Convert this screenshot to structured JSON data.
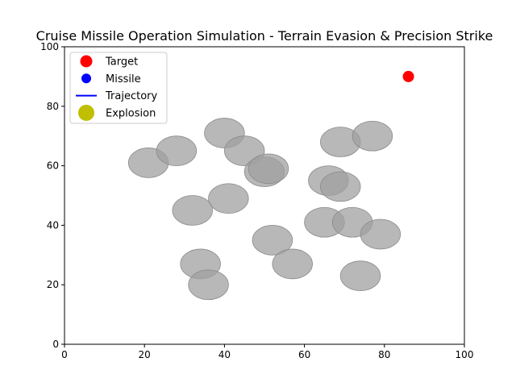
{
  "chart_data": {
    "type": "scatter",
    "title": "Cruise Missile Operation Simulation - Terrain Evasion & Precision Strike",
    "xlabel": "",
    "ylabel": "",
    "xlim": [
      0,
      100
    ],
    "ylim": [
      0,
      100
    ],
    "xticks": [
      "0",
      "20",
      "40",
      "60",
      "80",
      "100"
    ],
    "yticks": [
      "0",
      "20",
      "40",
      "60",
      "80",
      "100"
    ],
    "grid": false,
    "legend_position": "top-left",
    "legend": [
      {
        "label": "Target",
        "kind": "dot",
        "color": "#ff0000"
      },
      {
        "label": "Missile",
        "kind": "dot-small",
        "color": "#0000ff"
      },
      {
        "label": "Trajectory",
        "kind": "line",
        "color": "#0000ff"
      },
      {
        "label": "Explosion",
        "kind": "dot-large",
        "color": "#bfbf00"
      }
    ],
    "target": {
      "x": 86,
      "y": 90,
      "color": "#ff0000"
    },
    "obstacle_color": "#a0a0a0",
    "obstacles": [
      {
        "x": 21,
        "y": 61,
        "rx": 5,
        "ry": 5
      },
      {
        "x": 28,
        "y": 65,
        "rx": 5,
        "ry": 5
      },
      {
        "x": 40,
        "y": 71,
        "rx": 5,
        "ry": 5
      },
      {
        "x": 45,
        "y": 65,
        "rx": 5,
        "ry": 5
      },
      {
        "x": 50,
        "y": 58,
        "rx": 5,
        "ry": 5
      },
      {
        "x": 51,
        "y": 59,
        "rx": 5,
        "ry": 5
      },
      {
        "x": 41,
        "y": 49,
        "rx": 5,
        "ry": 5
      },
      {
        "x": 32,
        "y": 45,
        "rx": 5,
        "ry": 5
      },
      {
        "x": 69,
        "y": 68,
        "rx": 5,
        "ry": 5
      },
      {
        "x": 77,
        "y": 70,
        "rx": 5,
        "ry": 5
      },
      {
        "x": 66,
        "y": 55,
        "rx": 5,
        "ry": 5
      },
      {
        "x": 69,
        "y": 53,
        "rx": 5,
        "ry": 5
      },
      {
        "x": 65,
        "y": 41,
        "rx": 5,
        "ry": 5
      },
      {
        "x": 72,
        "y": 41,
        "rx": 5,
        "ry": 5
      },
      {
        "x": 79,
        "y": 37,
        "rx": 5,
        "ry": 5
      },
      {
        "x": 52,
        "y": 35,
        "rx": 5,
        "ry": 5
      },
      {
        "x": 57,
        "y": 27,
        "rx": 5,
        "ry": 5
      },
      {
        "x": 34,
        "y": 27,
        "rx": 5,
        "ry": 5
      },
      {
        "x": 36,
        "y": 20,
        "rx": 5,
        "ry": 5
      },
      {
        "x": 74,
        "y": 23,
        "rx": 5,
        "ry": 5
      }
    ]
  }
}
